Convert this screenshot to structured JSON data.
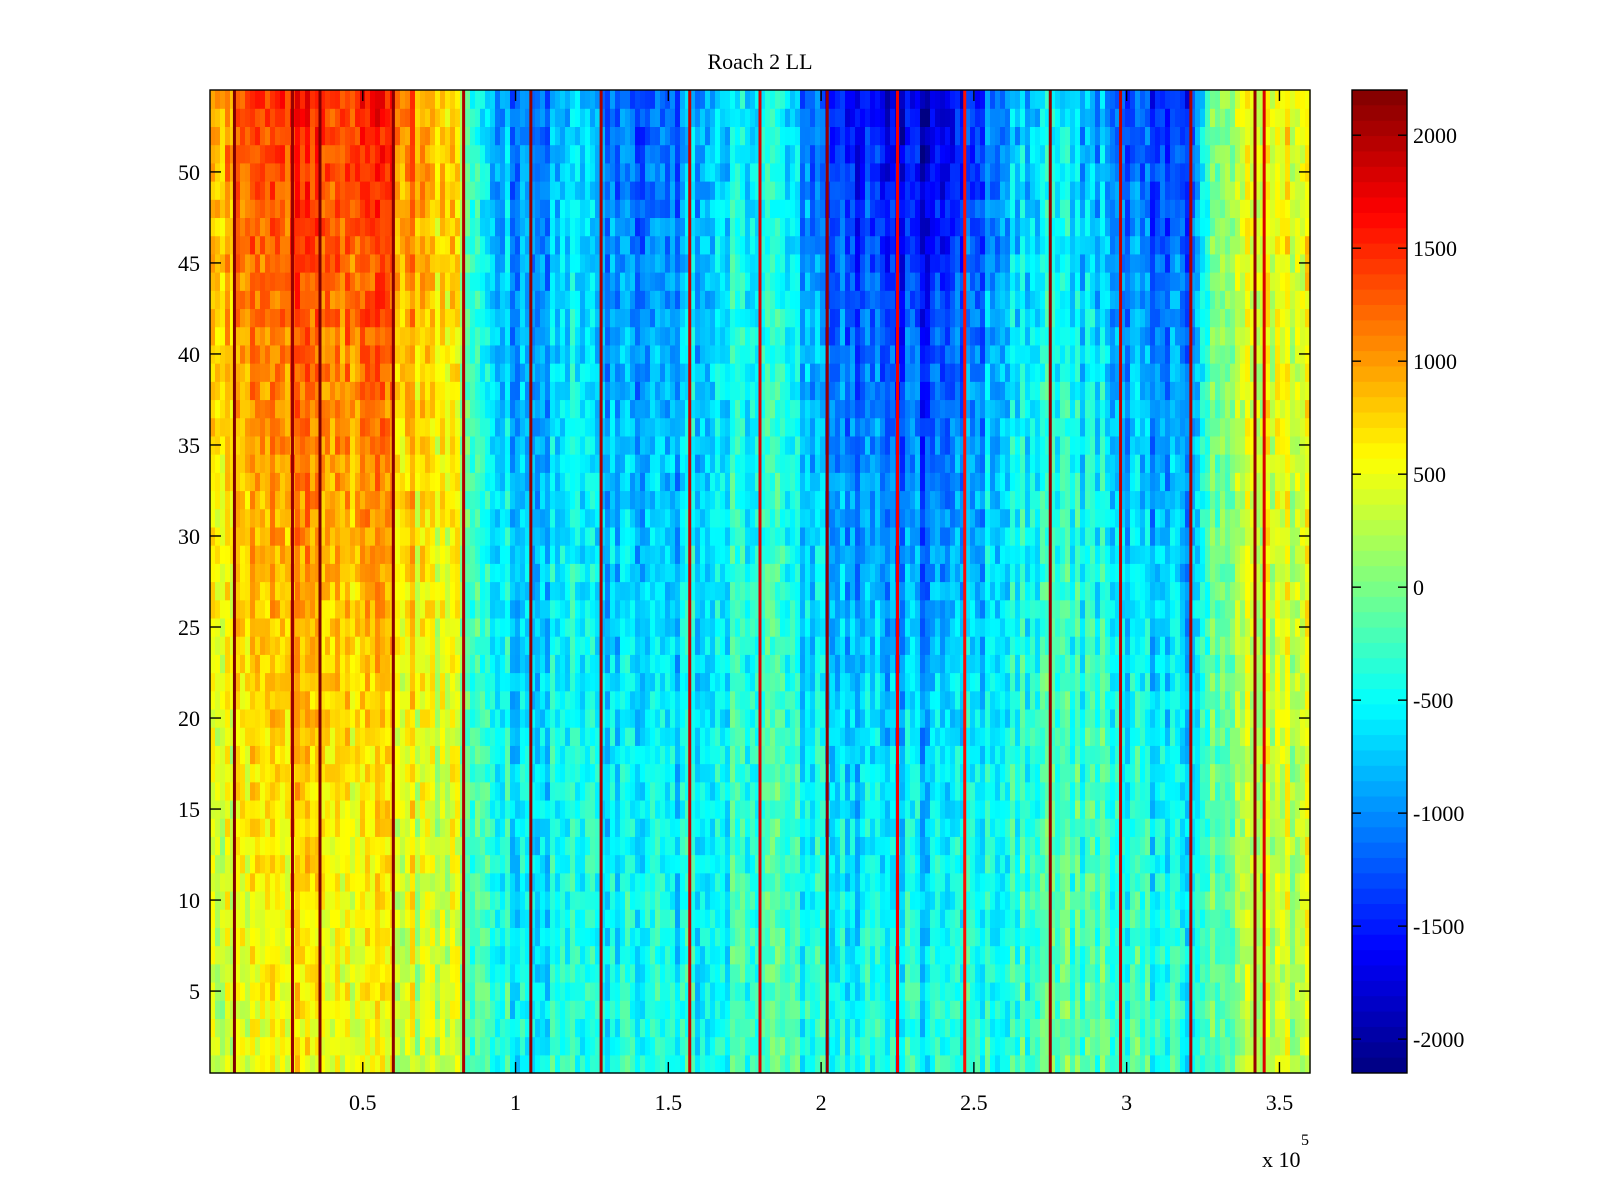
{
  "chart_data": {
    "type": "heatmap",
    "title": "Roach 2 LL",
    "xlabel": "",
    "ylabel": "",
    "x_exponent_label": {
      "base": "x 10",
      "exponent": "5"
    },
    "xlim": [
      0,
      3.6
    ],
    "ylim": [
      0.5,
      54.5
    ],
    "x_ticks": [
      0.5,
      1,
      1.5,
      2,
      2.5,
      3,
      3.5
    ],
    "x_tick_labels": [
      "0.5",
      "1",
      "1.5",
      "2",
      "2.5",
      "3",
      "3.5"
    ],
    "y_ticks": [
      5,
      10,
      15,
      20,
      25,
      30,
      35,
      40,
      45,
      50
    ],
    "y_tick_labels": [
      "5",
      "10",
      "15",
      "20",
      "25",
      "30",
      "35",
      "40",
      "45",
      "50"
    ],
    "colormap": "jet",
    "clim": [
      -2150,
      2200
    ],
    "colorbar": {
      "ticks": [
        2000,
        1500,
        1000,
        500,
        0,
        -500,
        -1000,
        -1500,
        -2000
      ],
      "tick_labels": [
        "2000",
        "1500",
        "1000",
        "500",
        "0",
        "-500",
        "-1000",
        "-1500",
        "-2000"
      ]
    },
    "column_profile": {
      "x_units": "x 10^5",
      "x": [
        0.0,
        0.1,
        0.2,
        0.3,
        0.4,
        0.5,
        0.6,
        0.7,
        0.8,
        0.9,
        1.0,
        1.1,
        1.2,
        1.3,
        1.4,
        1.5,
        1.6,
        1.7,
        1.8,
        1.9,
        2.0,
        2.1,
        2.2,
        2.3,
        2.4,
        2.5,
        2.6,
        2.7,
        2.8,
        2.9,
        3.0,
        3.1,
        3.2,
        3.3,
        3.4,
        3.5,
        3.6
      ],
      "low_rows_value": [
        300,
        350,
        400,
        500,
        450,
        500,
        450,
        350,
        250,
        -300,
        -400,
        -500,
        -300,
        -400,
        -500,
        -500,
        -400,
        -350,
        -300,
        -300,
        -350,
        -450,
        -450,
        -450,
        -400,
        -350,
        -300,
        -200,
        -150,
        -150,
        -200,
        -300,
        -400,
        -100,
        300,
        300,
        250
      ],
      "high_rows_value": [
        900,
        1200,
        1300,
        1500,
        1400,
        1600,
        1400,
        1000,
        700,
        -800,
        -1000,
        -1100,
        -600,
        -1000,
        -1400,
        -1300,
        -800,
        -600,
        -600,
        -700,
        -1300,
        -1500,
        -1700,
        -1800,
        -1800,
        -1500,
        -900,
        -600,
        -700,
        -900,
        -1200,
        -1400,
        -1400,
        200,
        500,
        500,
        500
      ]
    },
    "vertical_spikes": [
      {
        "x": 0.08,
        "value": 2200
      },
      {
        "x": 0.27,
        "value": 2100
      },
      {
        "x": 0.36,
        "value": 2200
      },
      {
        "x": 0.6,
        "value": 2150
      },
      {
        "x": 0.83,
        "value": 2000
      },
      {
        "x": 1.05,
        "value": 2100
      },
      {
        "x": 1.28,
        "value": 2000
      },
      {
        "x": 1.57,
        "value": 1900
      },
      {
        "x": 1.8,
        "value": 1800
      },
      {
        "x": 2.02,
        "value": 2100
      },
      {
        "x": 2.25,
        "value": 1700
      },
      {
        "x": 2.47,
        "value": 1600
      },
      {
        "x": 2.75,
        "value": 2100
      },
      {
        "x": 2.98,
        "value": 1900
      },
      {
        "x": 3.21,
        "value": 2000
      },
      {
        "x": 3.42,
        "value": 2100
      },
      {
        "x": 3.45,
        "value": 1800
      }
    ]
  }
}
